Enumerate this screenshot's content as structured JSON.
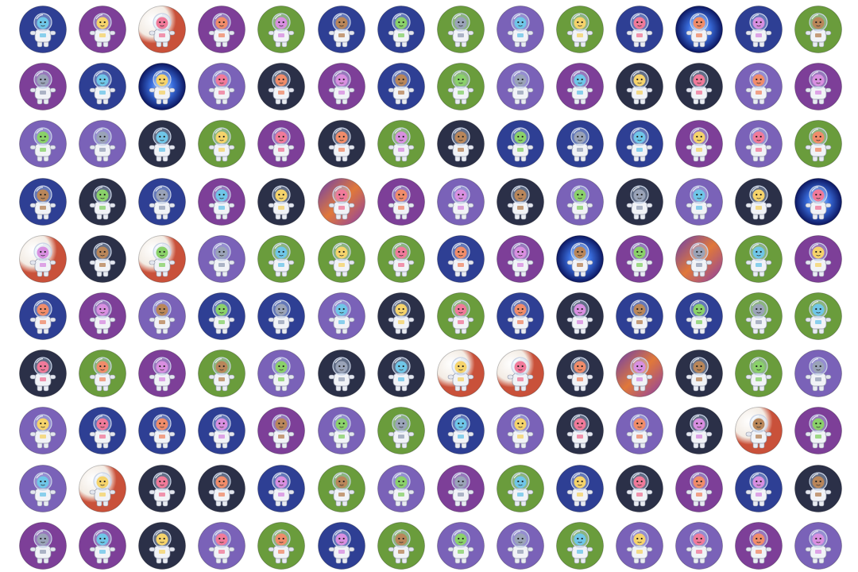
{
  "grid": {
    "rows": 10,
    "columns": 14,
    "tiles": [
      [
        "navy",
        "purple",
        "white",
        "purple",
        "green",
        "navy",
        "navy",
        "green",
        "violet",
        "green",
        "navy",
        "galaxy",
        "navy",
        "green"
      ],
      [
        "purple",
        "navy",
        "galaxy",
        "violet",
        "slate",
        "purple",
        "navy",
        "green",
        "violet",
        "purple",
        "slate",
        "slate",
        "violet",
        "purple"
      ],
      [
        "violet",
        "violet",
        "slate",
        "green",
        "purple",
        "slate",
        "green",
        "slate",
        "navy",
        "navy",
        "navy",
        "purple",
        "violet",
        "green"
      ],
      [
        "navy",
        "slate",
        "navy",
        "purple",
        "slate",
        "sunset",
        "purple",
        "violet",
        "slate",
        "violet",
        "slate",
        "violet",
        "slate",
        "galaxy"
      ],
      [
        "white",
        "slate",
        "white",
        "violet",
        "green",
        "green",
        "green",
        "navy",
        "purple",
        "galaxy",
        "purple",
        "sunset",
        "green",
        "purple"
      ],
      [
        "navy",
        "purple",
        "violet",
        "navy",
        "navy",
        "violet",
        "slate",
        "green",
        "navy",
        "slate",
        "navy",
        "navy",
        "green",
        "green"
      ],
      [
        "slate",
        "green",
        "purple",
        "green",
        "violet",
        "slate",
        "slate",
        "white",
        "white",
        "slate",
        "sunset",
        "slate",
        "green",
        "violet"
      ],
      [
        "violet",
        "navy",
        "navy",
        "navy",
        "purple",
        "violet",
        "green",
        "navy",
        "violet",
        "slate",
        "violet",
        "slate",
        "white",
        "purple"
      ],
      [
        "violet",
        "white",
        "slate",
        "slate",
        "navy",
        "green",
        "violet",
        "purple",
        "green",
        "navy",
        "slate",
        "purple",
        "navy",
        "slate"
      ],
      [
        "purple",
        "purple",
        "slate",
        "violet",
        "green",
        "navy",
        "green",
        "violet",
        "violet",
        "green",
        "violet",
        "violet",
        "purple",
        "violet"
      ]
    ]
  },
  "palette": {
    "navy": "#2e3f94",
    "purple": "#7d3f98",
    "violet": "#7a62b8",
    "green": "#6a9c3c",
    "slate": "#2b3048",
    "white": "#f4f0ea",
    "galaxy": "#3a5fd0",
    "sunset": "#c9693a"
  },
  "character_colors": [
    "#6fc6e8",
    "#f08c6a",
    "#8ad16a",
    "#f5d36b",
    "#d88fe0",
    "#9aa3b8",
    "#f07a9a",
    "#b9865a"
  ]
}
